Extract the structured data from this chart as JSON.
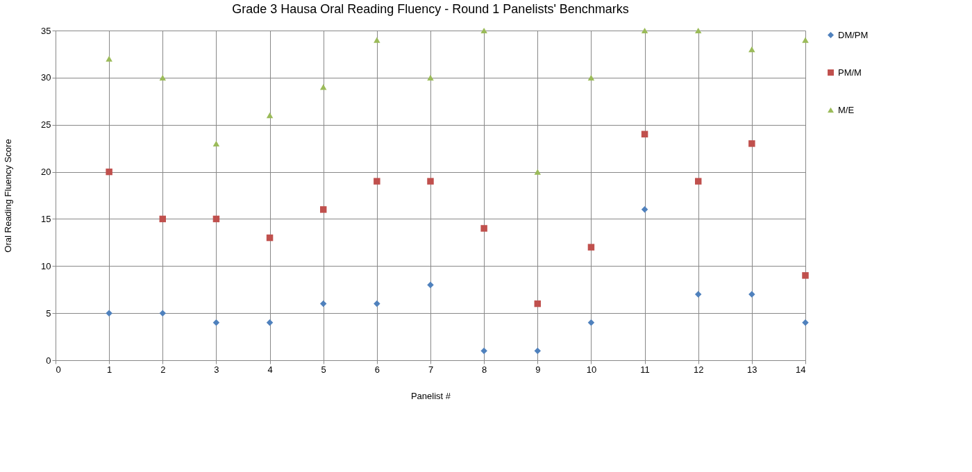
{
  "chart_data": {
    "type": "scatter",
    "title": "Grade 3 Hausa Oral Reading Fluency - Round 1 Panelists' Benchmarks",
    "xlabel": "Panelist #",
    "ylabel": "Oral Reading Fluency Score",
    "x": [
      1,
      2,
      3,
      4,
      5,
      6,
      7,
      8,
      9,
      10,
      11,
      12,
      13,
      14
    ],
    "series": [
      {
        "name": "DM/PM",
        "color": "#4f81bd",
        "marker": "diamond",
        "values": [
          5,
          5,
          4,
          4,
          6,
          6,
          8,
          1,
          1,
          4,
          16,
          7,
          7,
          4
        ]
      },
      {
        "name": "PM/M",
        "color": "#c0504d",
        "marker": "square",
        "values": [
          20,
          15,
          15,
          13,
          16,
          19,
          19,
          14,
          6,
          12,
          24,
          19,
          23,
          9
        ]
      },
      {
        "name": "M/E",
        "color": "#9bbb59",
        "marker": "triangle",
        "values": [
          32,
          30,
          23,
          26,
          29,
          34,
          30,
          35,
          20,
          30,
          35,
          35,
          33,
          34
        ]
      }
    ],
    "xlim": [
      0,
      14
    ],
    "xticks": [
      0,
      1,
      2,
      3,
      4,
      5,
      6,
      7,
      8,
      9,
      10,
      11,
      12,
      13,
      14
    ],
    "ylim": [
      0,
      35
    ],
    "yticks": [
      0,
      5,
      10,
      15,
      20,
      25,
      30,
      35
    ],
    "grid": true,
    "legend": "right"
  }
}
